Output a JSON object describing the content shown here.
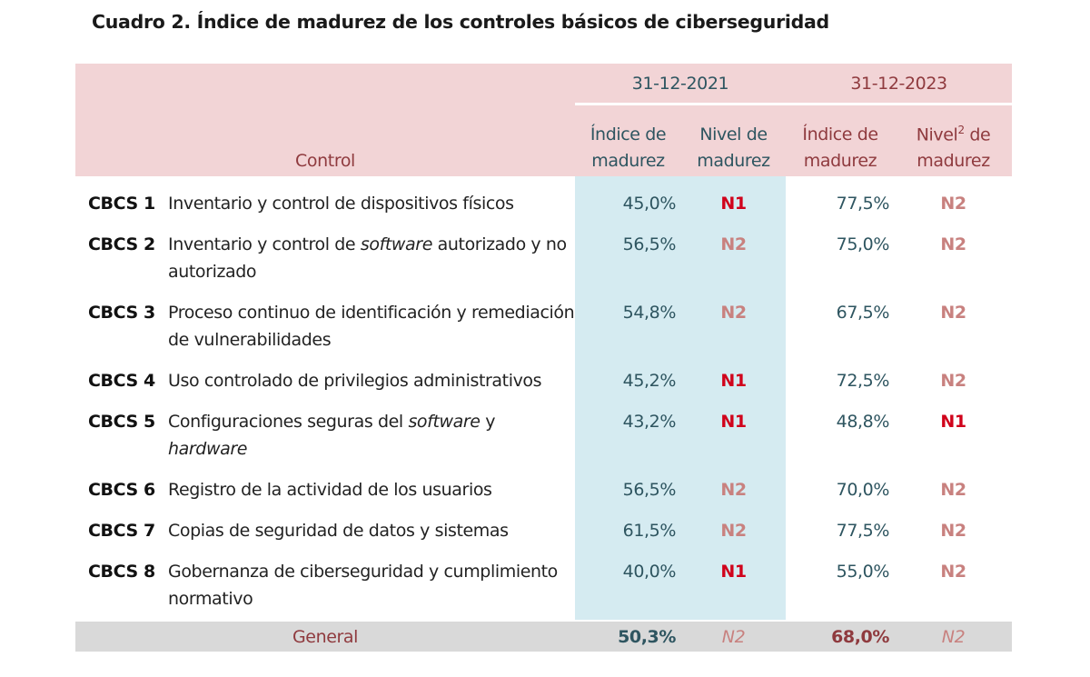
{
  "title": "Cuadro 2. Índice de madurez de los controles básicos de ciberseguridad",
  "header": {
    "period1": "31-12-2021",
    "period2": "31-12-2023",
    "control": "Control",
    "idx1_a": "Índice de",
    "idx1_b": "madurez",
    "lvl1_a": "Nivel de",
    "lvl1_b": "madurez",
    "idx2_a": "Índice de",
    "idx2_b": "madurez",
    "lvl2_a": "Nivel",
    "lvl2_sup": "2",
    "lvl2_a2": " de",
    "lvl2_b": "madurez"
  },
  "rows": [
    {
      "code": "CBCS 1",
      "text": [
        "Inventario y control de dispositivos físicos"
      ],
      "idx2021": "45,0%",
      "lvl2021": "N1",
      "idx2023": "77,5%",
      "lvl2023": "N2"
    },
    {
      "code": "CBCS 2",
      "text": [
        "Inventario y control de ",
        "software",
        " autorizado y no autorizado"
      ],
      "idx2021": "56,5%",
      "lvl2021": "N2",
      "idx2023": "75,0%",
      "lvl2023": "N2"
    },
    {
      "code": "CBCS 3",
      "text": [
        "Proceso continuo de identificación y remediación de vulnerabilidades"
      ],
      "idx2021": "54,8%",
      "lvl2021": "N2",
      "idx2023": "67,5%",
      "lvl2023": "N2"
    },
    {
      "code": "CBCS 4",
      "text": [
        "Uso controlado de privilegios administrativos"
      ],
      "idx2021": "45,2%",
      "lvl2021": "N1",
      "idx2023": "72,5%",
      "lvl2023": "N2"
    },
    {
      "code": "CBCS 5",
      "text": [
        "Configuraciones seguras del ",
        "software",
        " y ",
        "hardware"
      ],
      "idx2021": "43,2%",
      "lvl2021": "N1",
      "idx2023": "48,8%",
      "lvl2023": "N1"
    },
    {
      "code": "CBCS 6",
      "text": [
        "Registro de la actividad de los usuarios"
      ],
      "idx2021": "56,5%",
      "lvl2021": "N2",
      "idx2023": "70,0%",
      "lvl2023": "N2"
    },
    {
      "code": "CBCS 7",
      "text": [
        "Copias de seguridad de datos y sistemas"
      ],
      "idx2021": "61,5%",
      "lvl2021": "N2",
      "idx2023": "77,5%",
      "lvl2023": "N2"
    },
    {
      "code": "CBCS 8",
      "text": [
        "Gobernanza de ciberseguridad y cumplimiento normativo"
      ],
      "idx2021": "40,0%",
      "lvl2021": "N1",
      "idx2023": "55,0%",
      "lvl2023": "N2"
    }
  ],
  "general": {
    "label": "General",
    "idx2021": "50,3%",
    "lvl2021": "N2",
    "idx2023": "68,0%",
    "lvl2023": "N2"
  },
  "colors": {
    "header_bg": "#f2d4d6",
    "col2021_bg": "#d5ebf1",
    "general_bg": "#d9d9d9",
    "n1": "#d0021b",
    "n2": "#c8817f",
    "teal": "#2e5560",
    "dark_red": "#8f3a3e"
  }
}
